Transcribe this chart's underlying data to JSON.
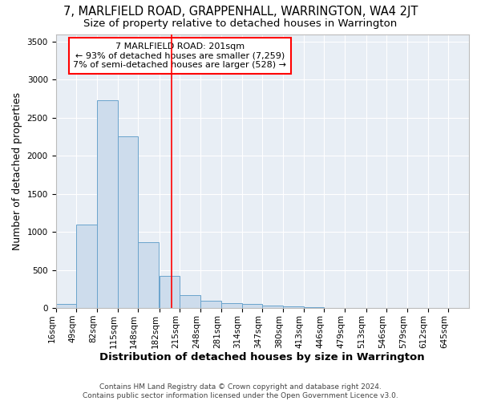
{
  "title": "7, MARLFIELD ROAD, GRAPPENHALL, WARRINGTON, WA4 2JT",
  "subtitle": "Size of property relative to detached houses in Warrington",
  "xlabel": "Distribution of detached houses by size in Warrington",
  "ylabel": "Number of detached properties",
  "footer_line1": "Contains HM Land Registry data © Crown copyright and database right 2024.",
  "footer_line2": "Contains public sector information licensed under the Open Government Licence v3.0.",
  "annotation_line1": "7 MARLFIELD ROAD: 201sqm",
  "annotation_line2": "← 93% of detached houses are smaller (7,259)",
  "annotation_line3": "7% of semi-detached houses are larger (528) →",
  "bar_color": "#cddcec",
  "bar_edge_color": "#6aa3cc",
  "red_line_x": 201,
  "bins": [
    16,
    49,
    82,
    115,
    148,
    182,
    215,
    248,
    281,
    314,
    347,
    380,
    413,
    446,
    479,
    513,
    546,
    579,
    612,
    645,
    678
  ],
  "counts": [
    50,
    1100,
    2730,
    2260,
    870,
    420,
    175,
    100,
    70,
    50,
    35,
    25,
    15,
    5,
    4,
    2,
    1,
    1,
    0,
    0
  ],
  "ylim": [
    0,
    3600
  ],
  "yticks": [
    0,
    500,
    1000,
    1500,
    2000,
    2500,
    3000,
    3500
  ],
  "figure_bg": "#ffffff",
  "plot_bg": "#e8eef5",
  "grid_color": "#ffffff",
  "title_fontsize": 10.5,
  "subtitle_fontsize": 9.5,
  "axis_label_fontsize": 9,
  "tick_fontsize": 7.5,
  "annotation_fontsize": 8,
  "footer_fontsize": 6.5
}
